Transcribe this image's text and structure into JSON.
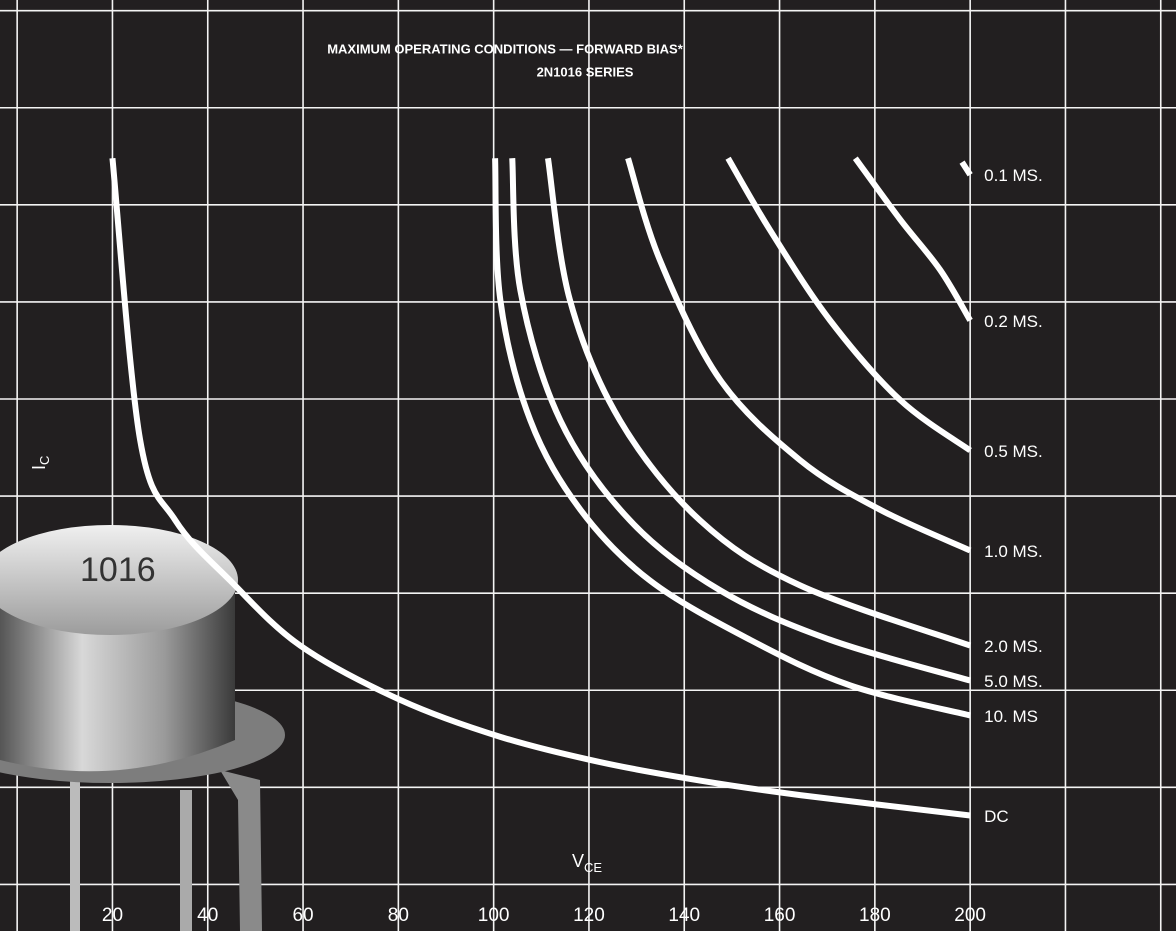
{
  "chart_data": {
    "type": "line",
    "title": "MAXIMUM OPERATING CONDITIONS — FORWARD BIAS*",
    "subtitle": "2N1016 SERIES",
    "xlabel": "V",
    "xlabel_sub": "CE",
    "ylabel": "I",
    "ylabel_sub": "C",
    "photo_marking": "1016",
    "xlim": [
      -3.6,
      243.2
    ],
    "ylim": [
      -0.48,
      9.11
    ],
    "xticks": [
      20,
      40,
      60,
      80,
      100,
      120,
      140,
      160,
      180,
      200
    ],
    "xgrid": [
      0,
      20,
      40,
      60,
      80,
      100,
      120,
      140,
      160,
      180,
      200,
      220,
      240
    ],
    "ygrid": [
      0,
      1,
      2,
      3,
      4,
      5,
      6,
      7,
      8,
      9
    ],
    "grid": true,
    "series": [
      {
        "name": "0.1 MS.",
        "color": "#ffffff",
        "x": [
          198.3,
          200
        ],
        "values": [
          7.44,
          7.31
        ]
      },
      {
        "name": "0.2 MS.",
        "color": "#ffffff",
        "x": [
          175.9,
          185.3,
          193.7,
          200
        ],
        "values": [
          7.48,
          6.85,
          6.33,
          5.81
        ]
      },
      {
        "name": "0.5 MS.",
        "color": "#ffffff",
        "x": [
          149.2,
          158,
          170.6,
          185.3,
          200
        ],
        "values": [
          7.48,
          6.74,
          5.81,
          4.99,
          4.47
        ]
      },
      {
        "name": "1.0 MS.",
        "color": "#ffffff",
        "x": [
          128.2,
          134.9,
          147.5,
          164.3,
          181.1,
          200
        ],
        "values": [
          7.48,
          6.43,
          5.2,
          4.37,
          3.86,
          3.44
        ]
      },
      {
        "name": "2.0 MS.",
        "color": "#ffffff",
        "x": [
          111.4,
          116,
          126.5,
          143.3,
          164.3,
          200
        ],
        "values": [
          7.48,
          6.02,
          4.78,
          3.75,
          3.08,
          2.46
        ]
      },
      {
        "name": "5.0 MS.",
        "color": "#ffffff",
        "x": [
          103.9,
          105.6,
          114,
          128.6,
          147.5,
          170.6,
          200
        ],
        "values": [
          7.48,
          6.12,
          4.78,
          3.75,
          3.03,
          2.52,
          2.1
        ]
      },
      {
        "name": "10. MS",
        "color": "#ffffff",
        "x": [
          100.3,
          101.4,
          107.7,
          118.2,
          132.8,
          153.8,
          174.8,
          200
        ],
        "values": [
          7.48,
          6.02,
          4.78,
          3.86,
          3.13,
          2.52,
          2.05,
          1.74
        ]
      },
      {
        "name": "DC",
        "color": "#ffffff",
        "x": [
          20,
          25.8,
          33.2,
          44.7,
          59.4,
          80.4,
          101.4,
          122.3,
          143.3,
          164.3,
          200
        ],
        "values": [
          7.48,
          4.58,
          3.75,
          3.13,
          2.46,
          1.9,
          1.52,
          1.26,
          1.07,
          0.92,
          0.71
        ]
      }
    ]
  }
}
